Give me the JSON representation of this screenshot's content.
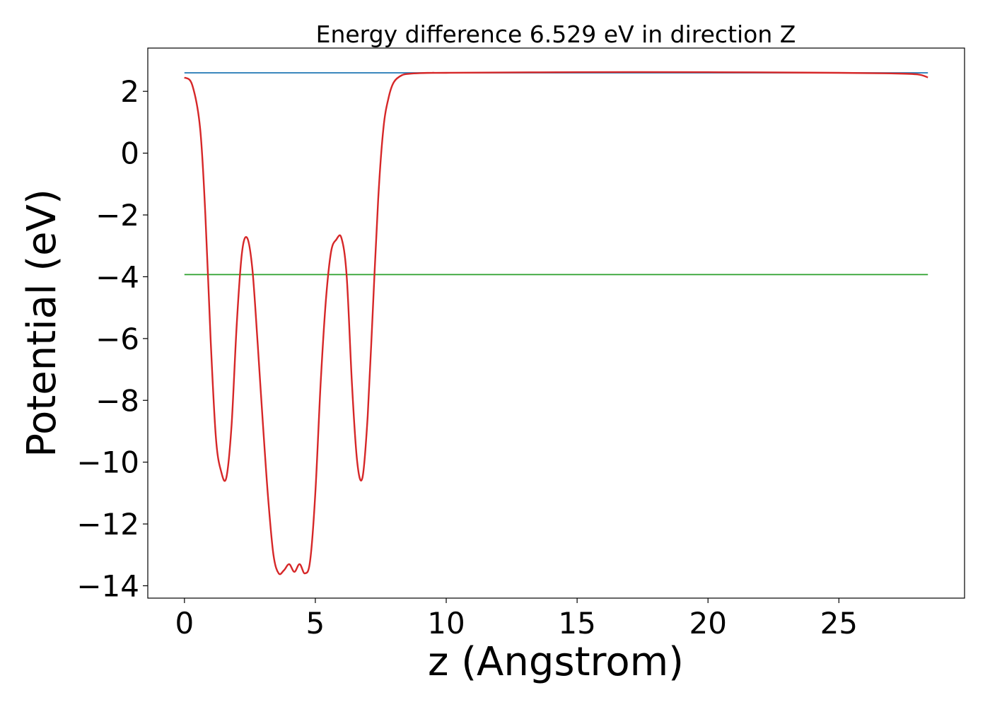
{
  "chart_data": {
    "type": "line",
    "title": "Energy difference 6.529 eV in direction Z",
    "xlabel": "z (Angstrom)",
    "ylabel": "Potential (eV)",
    "xlim": [
      -1.4,
      29.8
    ],
    "ylim": [
      -14.4,
      3.4
    ],
    "xticks": [
      0,
      5,
      10,
      15,
      20,
      25
    ],
    "yticks": [
      2,
      0,
      -2,
      -4,
      -6,
      -8,
      -10,
      -12,
      -14
    ],
    "grid": false,
    "legend": "none",
    "series": [
      {
        "color": "#1f77b4",
        "style": "horizontal",
        "x": [
          0,
          28.4
        ],
        "y": [
          2.6,
          2.6
        ]
      },
      {
        "color": "#2ca02c",
        "style": "horizontal",
        "x": [
          0,
          28.4
        ],
        "y": [
          -3.93,
          -3.93
        ]
      },
      {
        "color": "#d62728",
        "style": "smooth",
        "x": [
          0,
          0.3,
          0.6,
          0.8,
          1.0,
          1.2,
          1.4,
          1.6,
          1.8,
          2.0,
          2.2,
          2.4,
          2.6,
          2.8,
          3.0,
          3.2,
          3.4,
          3.6,
          3.8,
          4.0,
          4.2,
          4.4,
          4.6,
          4.8,
          5.0,
          5.2,
          5.4,
          5.6,
          5.8,
          6.0,
          6.2,
          6.4,
          6.6,
          6.8,
          7.0,
          7.2,
          7.4,
          7.6,
          7.8,
          8.0,
          8.3,
          8.6,
          9.0,
          9.5,
          10,
          15,
          20,
          25,
          27,
          28,
          28.4
        ],
        "y": [
          2.45,
          2.2,
          0.8,
          -2.0,
          -6.0,
          -9.2,
          -10.3,
          -10.5,
          -8.8,
          -5.5,
          -3.2,
          -2.75,
          -3.8,
          -6.2,
          -8.8,
          -11.2,
          -13.0,
          -13.6,
          -13.5,
          -13.3,
          -13.55,
          -13.3,
          -13.6,
          -13.2,
          -11.0,
          -7.5,
          -4.8,
          -3.2,
          -2.8,
          -2.75,
          -4.0,
          -7.5,
          -10.0,
          -10.5,
          -8.5,
          -5.0,
          -1.5,
          0.8,
          1.8,
          2.3,
          2.52,
          2.57,
          2.59,
          2.6,
          2.6,
          2.62,
          2.62,
          2.6,
          2.58,
          2.55,
          2.45
        ]
      }
    ]
  }
}
